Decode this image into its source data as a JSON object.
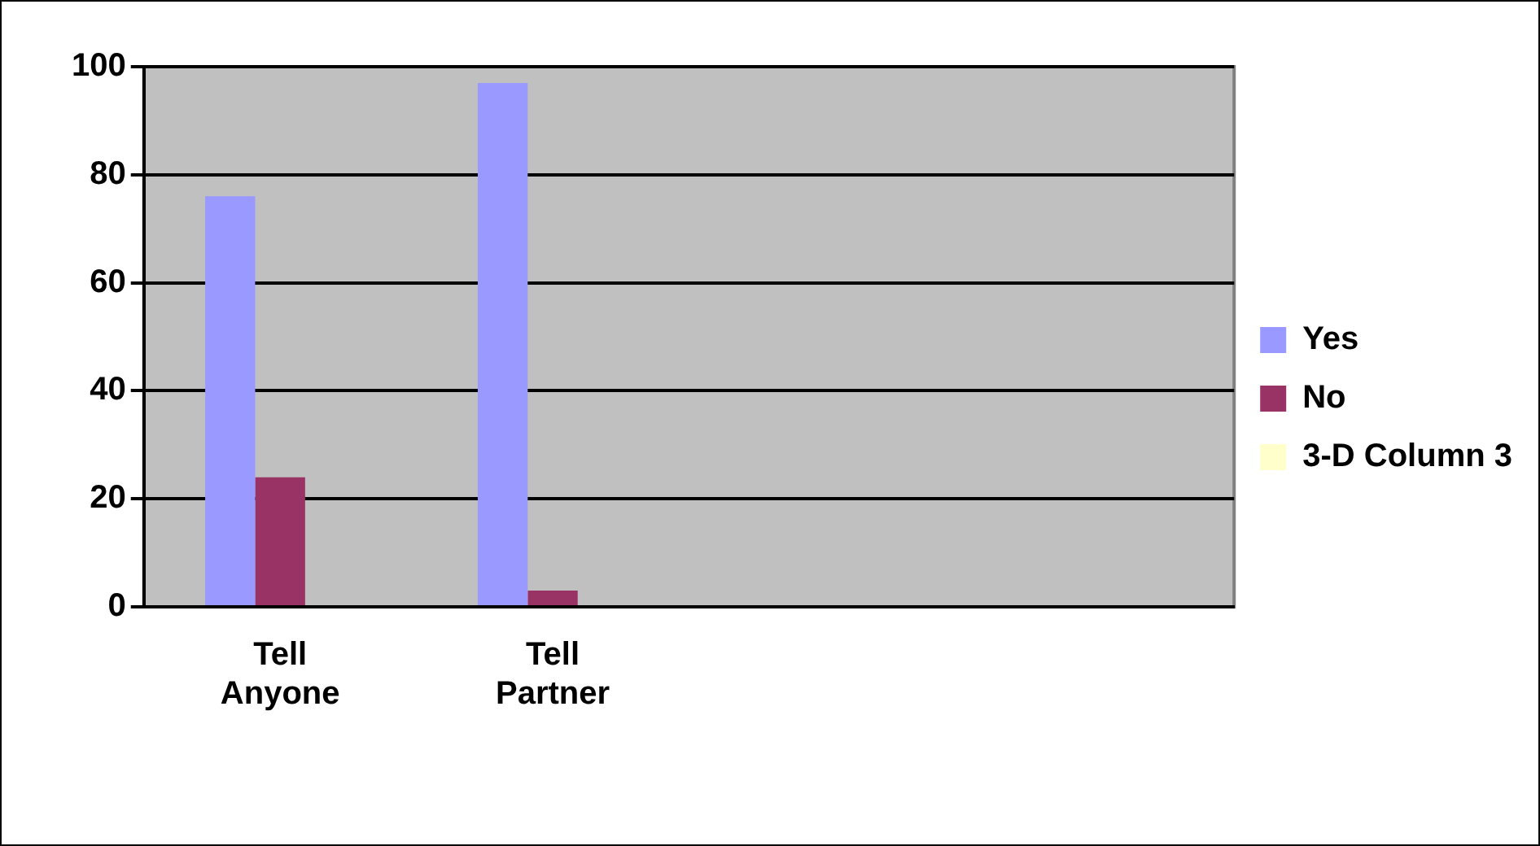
{
  "chart_data": {
    "type": "bar",
    "categories": [
      "Tell Anyone",
      "Tell Partner",
      null,
      null
    ],
    "series": [
      {
        "name": "Yes",
        "color": "#9999ff",
        "values": [
          76,
          97,
          null,
          null
        ]
      },
      {
        "name": "No",
        "color": "#993366",
        "values": [
          24,
          3,
          null,
          null
        ]
      },
      {
        "name": "3-D Column 3",
        "color": "#ffffcc",
        "values": [
          null,
          null,
          null,
          null
        ]
      }
    ],
    "ylim": [
      0,
      100
    ],
    "yticks": [
      0,
      20,
      40,
      60,
      80,
      100
    ],
    "grid": "y",
    "legend": "right"
  }
}
